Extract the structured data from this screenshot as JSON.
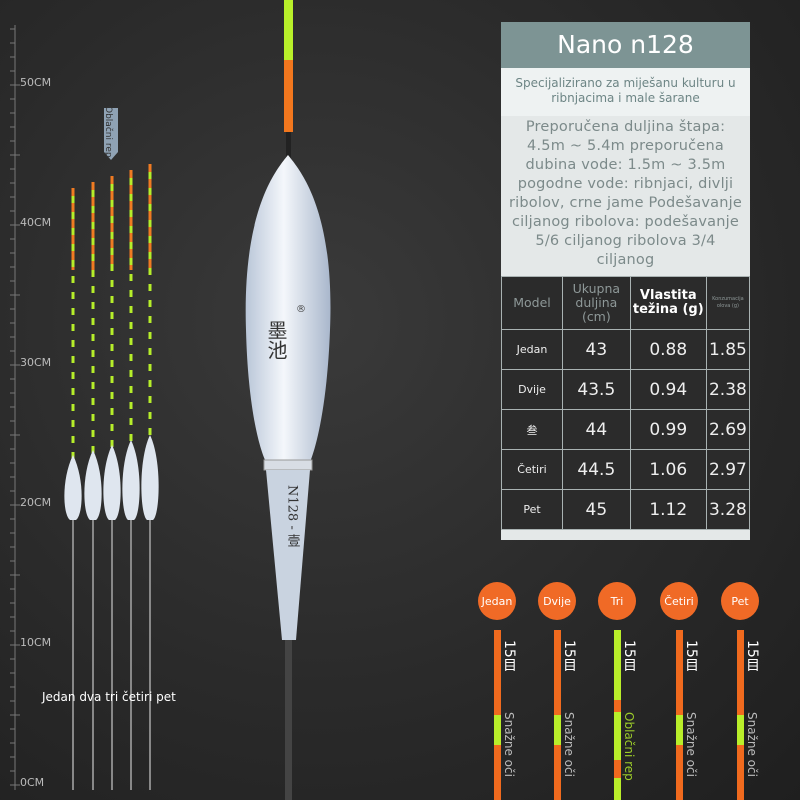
{
  "ruler": {
    "labels": [
      "50CM",
      "40CM",
      "30CM",
      "20CM",
      "10CM",
      "0CM"
    ]
  },
  "top_label": "Oblačni rep",
  "caption": "Jedan dva tri četiri pet",
  "float": {
    "brand": "墨池",
    "registered": "®",
    "model": "N128 - 壹"
  },
  "panel": {
    "title": "Nano n128",
    "subtitle": "Specijalizirano za miješanu kulturu u ribnjacima i male šarane",
    "description": "Preporučena duljina štapa: 4.5m ~ 5.4m preporučena dubina vode: 1.5m ~ 3.5m pogodne vode: ribnjaci, divlji ribolov, crne jame Podešavanje ciljanog ribolova: podešavanje 5/6 ciljanog ribolova 3/4 ciljanog",
    "table": {
      "header": [
        "Model",
        "Ukupna duljina (cm)",
        "Vlastita težina (g)",
        "Konzumacija olova (g)"
      ],
      "rows": [
        [
          "Jedan",
          43,
          0.88,
          1.85
        ],
        [
          "Dvije",
          43.5,
          0.94,
          2.38
        ],
        [
          "叁",
          44,
          0.99,
          2.69
        ],
        [
          "Četiri",
          44.5,
          1.06,
          2.97
        ],
        [
          "Pet",
          45,
          1.12,
          3.28
        ]
      ]
    }
  },
  "variants": [
    {
      "name": "Jedan",
      "mesh": "15目",
      "tip": "Snažne oči"
    },
    {
      "name": "Dvije",
      "mesh": "15目",
      "tip": "Snažne oči"
    },
    {
      "name": "Tri",
      "mesh": "15目",
      "tip": "Oblačni rep"
    },
    {
      "name": "Četiri",
      "mesh": "15目",
      "tip": "Snažne oči"
    },
    {
      "name": "Pet",
      "mesh": "15目",
      "tip": "Snažne oči"
    }
  ]
}
